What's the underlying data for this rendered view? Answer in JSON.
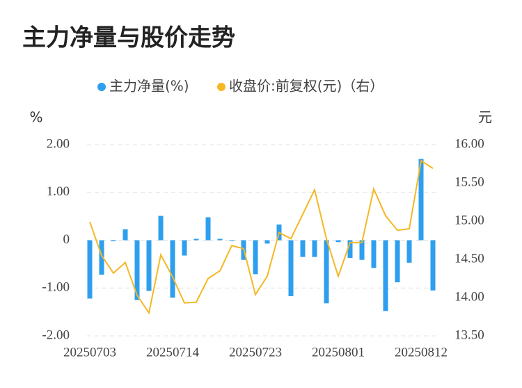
{
  "chart_data": {
    "type": "bar-line",
    "title": "主力净量与股价走势",
    "y_label": "%",
    "y2_label": "元",
    "categories": [
      "20250703",
      null,
      null,
      null,
      null,
      null,
      null,
      "20250714",
      null,
      null,
      null,
      null,
      null,
      null,
      "20250723",
      null,
      null,
      null,
      null,
      null,
      null,
      "20250801",
      null,
      null,
      null,
      null,
      null,
      null,
      "20250812",
      null
    ],
    "series": [
      {
        "name": "主力净量(%)",
        "color": "#2e9fee",
        "type": "bar",
        "values": [
          -1.22,
          -0.72,
          -0.02,
          0.23,
          -1.25,
          -1.06,
          0.51,
          -1.2,
          -0.32,
          0.03,
          0.48,
          0.03,
          -0.01,
          -0.41,
          -0.71,
          -0.07,
          0.33,
          -1.17,
          -0.35,
          -0.35,
          -1.32,
          -0.04,
          -0.37,
          -0.41,
          -0.58,
          -1.48,
          -0.88,
          -0.47,
          1.7,
          -1.05
        ]
      },
      {
        "name": "收盘价:前复权(元)（右）",
        "color": "#f5b724",
        "type": "line",
        "axis": "y2",
        "values": [
          14.99,
          14.55,
          14.32,
          14.46,
          14.03,
          13.8,
          14.56,
          14.27,
          13.93,
          13.94,
          14.25,
          14.35,
          14.68,
          14.64,
          14.04,
          14.28,
          14.85,
          14.77,
          15.09,
          15.41,
          14.77,
          14.28,
          14.72,
          14.72,
          15.42,
          15.07,
          14.88,
          14.9,
          15.79,
          15.69
        ]
      }
    ],
    "ylim": [
      -2,
      2
    ],
    "yticks": [
      {
        "value": 2,
        "label": "2.00"
      },
      {
        "value": 1,
        "label": "1.00"
      },
      0,
      {
        "value": -1,
        "label": "-1.00"
      },
      {
        "value": -2,
        "label": "-2.00"
      }
    ],
    "y2lim": [
      13.5,
      16
    ],
    "y2ticks": [
      {
        "value": 16,
        "label": "16.00"
      },
      {
        "value": 15.5,
        "label": "15.50"
      },
      {
        "value": 15,
        "label": "15.00"
      },
      {
        "value": 14.5,
        "label": "14.50"
      },
      {
        "value": 14,
        "label": "14.00"
      },
      {
        "value": 13.5,
        "label": "13.50"
      }
    ],
    "grid": true
  }
}
